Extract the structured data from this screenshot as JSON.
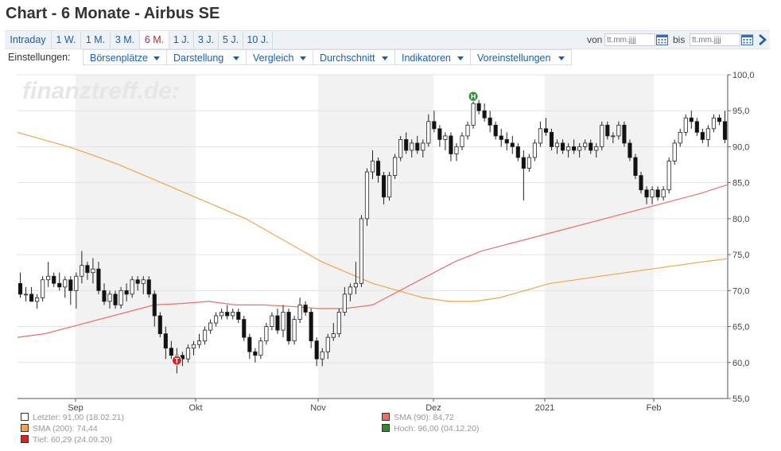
{
  "title": "Chart - 6 Monate - Airbus SE",
  "range_tabs": [
    {
      "label": "Intraday",
      "active": false
    },
    {
      "label": "1 W.",
      "active": false
    },
    {
      "label": "1 M.",
      "active": false
    },
    {
      "label": "3 M.",
      "active": false
    },
    {
      "label": "6 M.",
      "active": true
    },
    {
      "label": "1 J.",
      "active": false
    },
    {
      "label": "3 J.",
      "active": false
    },
    {
      "label": "5 J.",
      "active": false
    },
    {
      "label": "10 J.",
      "active": false
    }
  ],
  "date_range": {
    "from_label": "von",
    "from_placeholder": "tt.mm.jjjj",
    "to_label": "bis",
    "to_placeholder": "tt.mm.jjjj"
  },
  "settings": {
    "label": "Einstellungen:",
    "menus": [
      "Börsenplätze",
      "Darstellung",
      "Vergleich",
      "Durchschnitt",
      "Indikatoren",
      "Voreinstellungen"
    ]
  },
  "watermark": "finanztreff.de:",
  "colors": {
    "accent": "#1b5ea8",
    "active_tab": "#b3282d",
    "sma200": "#f0a54a",
    "sma90": "#e8706a",
    "hoch": "#2e8b2e",
    "tief": "#e02020",
    "shade": "#f2f2f2"
  },
  "chart_data": {
    "type": "candlestick",
    "ylim": [
      55,
      100
    ],
    "y_ticks": [
      "100,0",
      "95,0",
      "90,0",
      "85,0",
      "80,0",
      "75,0",
      "70,0",
      "65,0",
      "60,0",
      "55,0"
    ],
    "x_ticks": [
      "Sep",
      "Okt",
      "Nov",
      "Dez",
      "2021",
      "Feb"
    ],
    "shaded_months": [
      "Sep",
      "Nov",
      "2021"
    ],
    "ohlc": [
      [
        71.0,
        72.5,
        69.0,
        69.5
      ],
      [
        69.5,
        70.5,
        68.5,
        69.5
      ],
      [
        69.5,
        70.5,
        68.5,
        68.5
      ],
      [
        68.5,
        69.5,
        67.5,
        69.0
      ],
      [
        69.0,
        72.0,
        68.5,
        71.5
      ],
      [
        71.5,
        74.0,
        70.5,
        72.0
      ],
      [
        72.0,
        72.5,
        70.5,
        71.0
      ],
      [
        71.0,
        72.5,
        70.0,
        70.5
      ],
      [
        70.5,
        72.0,
        69.0,
        71.5
      ],
      [
        71.5,
        72.0,
        68.0,
        70.0
      ],
      [
        70.0,
        72.5,
        67.5,
        72.0
      ],
      [
        72.0,
        75.5,
        71.0,
        73.5
      ],
      [
        73.5,
        74.0,
        71.5,
        72.5
      ],
      [
        72.5,
        74.5,
        71.0,
        73.0
      ],
      [
        73.0,
        74.0,
        69.5,
        70.0
      ],
      [
        70.0,
        71.0,
        68.0,
        68.5
      ],
      [
        68.5,
        70.0,
        67.5,
        69.5
      ],
      [
        69.5,
        70.0,
        67.5,
        68.0
      ],
      [
        68.0,
        70.5,
        67.5,
        70.0
      ],
      [
        70.0,
        71.0,
        68.5,
        69.5
      ],
      [
        69.5,
        72.0,
        69.0,
        71.5
      ],
      [
        71.5,
        72.0,
        70.0,
        71.0
      ],
      [
        71.0,
        72.0,
        69.5,
        71.5
      ],
      [
        71.5,
        72.0,
        69.0,
        69.5
      ],
      [
        69.5,
        70.0,
        65.0,
        66.5
      ],
      [
        66.5,
        67.0,
        63.5,
        64.0
      ],
      [
        64.0,
        65.0,
        60.5,
        62.0
      ],
      [
        62.0,
        63.0,
        60.5,
        61.0
      ],
      [
        61.0,
        62.0,
        58.5,
        61.0
      ],
      [
        61.0,
        61.5,
        59.5,
        60.5
      ],
      [
        60.5,
        62.5,
        60.0,
        62.0
      ],
      [
        62.0,
        63.0,
        61.0,
        62.5
      ],
      [
        62.5,
        64.0,
        62.0,
        63.0
      ],
      [
        63.0,
        65.0,
        62.5,
        64.5
      ],
      [
        64.5,
        66.0,
        64.0,
        65.5
      ],
      [
        65.5,
        67.0,
        65.0,
        66.5
      ],
      [
        66.5,
        67.5,
        66.0,
        67.0
      ],
      [
        67.0,
        68.0,
        66.0,
        66.5
      ],
      [
        66.5,
        67.5,
        66.0,
        67.0
      ],
      [
        67.0,
        67.5,
        65.5,
        66.0
      ],
      [
        66.0,
        66.5,
        63.0,
        63.5
      ],
      [
        63.5,
        64.0,
        60.5,
        61.5
      ],
      [
        61.5,
        62.0,
        60.0,
        61.0
      ],
      [
        61.0,
        63.5,
        60.5,
        63.0
      ],
      [
        63.0,
        65.5,
        62.5,
        65.0
      ],
      [
        65.0,
        67.0,
        64.5,
        66.5
      ],
      [
        66.5,
        67.5,
        64.0,
        64.5
      ],
      [
        64.5,
        68.0,
        63.5,
        67.0
      ],
      [
        67.0,
        67.5,
        62.5,
        63.0
      ],
      [
        63.0,
        66.5,
        62.5,
        66.0
      ],
      [
        66.0,
        69.0,
        65.5,
        68.0
      ],
      [
        68.0,
        68.5,
        66.5,
        67.0
      ],
      [
        67.0,
        67.5,
        62.0,
        63.0
      ],
      [
        63.0,
        63.5,
        59.5,
        60.5
      ],
      [
        60.5,
        62.0,
        59.5,
        61.5
      ],
      [
        61.5,
        64.0,
        60.5,
        63.5
      ],
      [
        63.5,
        65.5,
        63.0,
        64.0
      ],
      [
        64.0,
        67.5,
        63.5,
        67.0
      ],
      [
        67.0,
        70.5,
        66.5,
        69.5
      ],
      [
        69.5,
        71.0,
        68.5,
        70.5
      ],
      [
        70.5,
        74.0,
        69.5,
        71.0
      ],
      [
        71.0,
        80.5,
        70.5,
        80.0
      ],
      [
        80.0,
        87.0,
        79.0,
        86.5
      ],
      [
        86.5,
        89.5,
        85.5,
        88.0
      ],
      [
        88.0,
        88.5,
        85.0,
        86.0
      ],
      [
        86.0,
        86.5,
        82.0,
        83.0
      ],
      [
        83.0,
        86.5,
        82.5,
        86.0
      ],
      [
        86.0,
        89.0,
        85.5,
        88.5
      ],
      [
        88.5,
        91.5,
        88.0,
        91.0
      ],
      [
        91.0,
        92.0,
        89.0,
        89.5
      ],
      [
        89.5,
        91.0,
        88.5,
        90.5
      ],
      [
        90.5,
        91.5,
        89.0,
        89.5
      ],
      [
        89.5,
        91.0,
        88.5,
        90.5
      ],
      [
        90.5,
        94.5,
        90.0,
        93.5
      ],
      [
        93.5,
        95.0,
        92.0,
        92.5
      ],
      [
        92.5,
        93.0,
        90.0,
        91.0
      ],
      [
        91.0,
        92.0,
        89.5,
        91.5
      ],
      [
        91.5,
        92.0,
        88.0,
        89.0
      ],
      [
        89.0,
        90.5,
        88.0,
        90.0
      ],
      [
        90.0,
        92.0,
        89.5,
        91.5
      ],
      [
        91.5,
        93.5,
        91.0,
        93.0
      ],
      [
        93.0,
        96.5,
        92.5,
        96.0
      ],
      [
        96.0,
        96.5,
        94.5,
        95.0
      ],
      [
        95.0,
        96.0,
        93.5,
        94.0
      ],
      [
        94.0,
        95.0,
        92.0,
        93.0
      ],
      [
        93.0,
        93.5,
        91.0,
        91.5
      ],
      [
        91.5,
        92.5,
        90.0,
        91.0
      ],
      [
        91.0,
        92.0,
        89.5,
        90.5
      ],
      [
        90.5,
        91.5,
        89.0,
        90.0
      ],
      [
        90.0,
        90.5,
        88.0,
        88.5
      ],
      [
        88.5,
        89.5,
        82.5,
        87.0
      ],
      [
        87.0,
        89.0,
        86.5,
        88.5
      ],
      [
        88.5,
        91.0,
        88.0,
        90.5
      ],
      [
        90.5,
        93.5,
        90.0,
        92.5
      ],
      [
        92.5,
        94.0,
        91.5,
        92.0
      ],
      [
        92.0,
        92.5,
        89.5,
        90.0
      ],
      [
        90.0,
        91.0,
        89.0,
        90.5
      ],
      [
        90.5,
        91.0,
        89.0,
        89.5
      ],
      [
        89.5,
        90.5,
        88.5,
        90.0
      ],
      [
        90.0,
        91.0,
        89.0,
        89.5
      ],
      [
        89.5,
        90.5,
        88.5,
        90.0
      ],
      [
        90.0,
        91.0,
        89.5,
        90.5
      ],
      [
        90.5,
        91.0,
        89.0,
        89.5
      ],
      [
        89.5,
        90.5,
        88.5,
        90.0
      ],
      [
        90.0,
        93.5,
        89.5,
        93.0
      ],
      [
        93.0,
        93.5,
        91.0,
        91.5
      ],
      [
        91.5,
        92.0,
        90.5,
        91.5
      ],
      [
        91.5,
        93.5,
        91.0,
        93.0
      ],
      [
        93.0,
        93.5,
        90.0,
        90.5
      ],
      [
        90.5,
        91.0,
        88.0,
        88.5
      ],
      [
        88.5,
        89.0,
        85.5,
        86.0
      ],
      [
        86.0,
        86.5,
        83.5,
        84.0
      ],
      [
        84.0,
        84.5,
        82.0,
        83.0
      ],
      [
        83.0,
        84.5,
        82.0,
        84.0
      ],
      [
        84.0,
        84.5,
        82.5,
        83.0
      ],
      [
        83.0,
        84.5,
        82.5,
        84.0
      ],
      [
        84.0,
        88.5,
        83.5,
        88.0
      ],
      [
        88.0,
        91.0,
        87.5,
        90.5
      ],
      [
        90.5,
        92.5,
        90.0,
        92.0
      ],
      [
        92.0,
        94.5,
        91.5,
        94.0
      ],
      [
        94.0,
        95.0,
        92.5,
        93.5
      ],
      [
        93.5,
        94.0,
        91.5,
        92.0
      ],
      [
        92.0,
        92.5,
        90.5,
        91.0
      ],
      [
        91.0,
        93.0,
        90.0,
        92.5
      ],
      [
        92.5,
        94.5,
        92.0,
        94.0
      ],
      [
        94.0,
        94.5,
        93.0,
        93.5
      ],
      [
        93.5,
        95.0,
        90.5,
        91.0
      ]
    ],
    "sma200": [
      92.0,
      91.0,
      90.0,
      88.8,
      87.5,
      86.0,
      84.5,
      83.0,
      81.5,
      80.0,
      78.0,
      76.0,
      74.0,
      72.5,
      71.0,
      70.0,
      69.0,
      68.5,
      68.5,
      69.0,
      70.0,
      71.0,
      71.5,
      72.0,
      72.5,
      73.0,
      73.5,
      74.0,
      74.44
    ],
    "sma90": [
      63.5,
      64.0,
      65.0,
      66.0,
      67.0,
      68.0,
      68.2,
      68.5,
      68.0,
      68.0,
      67.8,
      67.5,
      67.5,
      68.0,
      70.0,
      72.0,
      74.0,
      75.5,
      76.5,
      77.5,
      78.5,
      79.5,
      80.5,
      81.5,
      82.5,
      83.5,
      84.72
    ],
    "markers": [
      {
        "label": "H",
        "value": 96.0
      },
      {
        "label": "T",
        "value": 60.29
      }
    ]
  },
  "legend": [
    {
      "text": "Letzter: 91,00 (18.02.21)",
      "color": "#ffffff"
    },
    {
      "text": "SMA (90): 84,72",
      "color": "#e8706a"
    },
    {
      "text": "SMA (200): 74,44",
      "color": "#f0a54a"
    },
    {
      "text": "Hoch: 96,00 (04.12.20)",
      "color": "#2e8b2e"
    },
    {
      "text": "Tief: 60,29 (24.09.20)",
      "color": "#e02020"
    }
  ]
}
